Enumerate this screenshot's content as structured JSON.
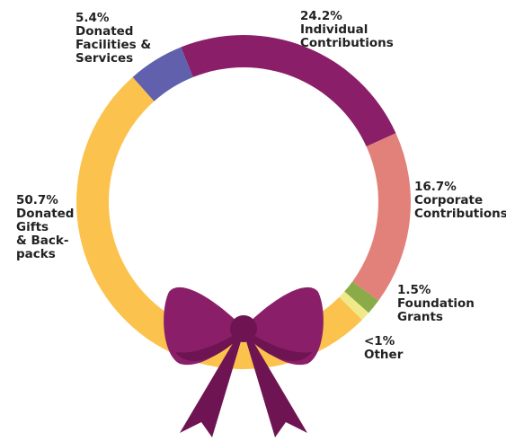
{
  "chart_data": {
    "type": "donut",
    "categories": [
      [
        "Individual",
        "Contributions"
      ],
      [
        "Corporate",
        "Contributions"
      ],
      [
        "Foundation",
        "Grants"
      ],
      [
        "Other"
      ],
      [
        "Donated",
        "Gifts",
        "& Back-",
        "packs"
      ],
      [
        "Donated",
        "Facilities &",
        "Services"
      ]
    ],
    "values": [
      24.2,
      16.7,
      1.5,
      0.9,
      50.7,
      5.4
    ],
    "value_labels": [
      "24.2%",
      "16.7%",
      "1.5%",
      "<1%",
      "50.7%",
      "5.4%"
    ],
    "colors": [
      "#8b1e68",
      "#e2817a",
      "#8aab48",
      "#f0e98a",
      "#fcc24e",
      "#6060ad"
    ]
  }
}
